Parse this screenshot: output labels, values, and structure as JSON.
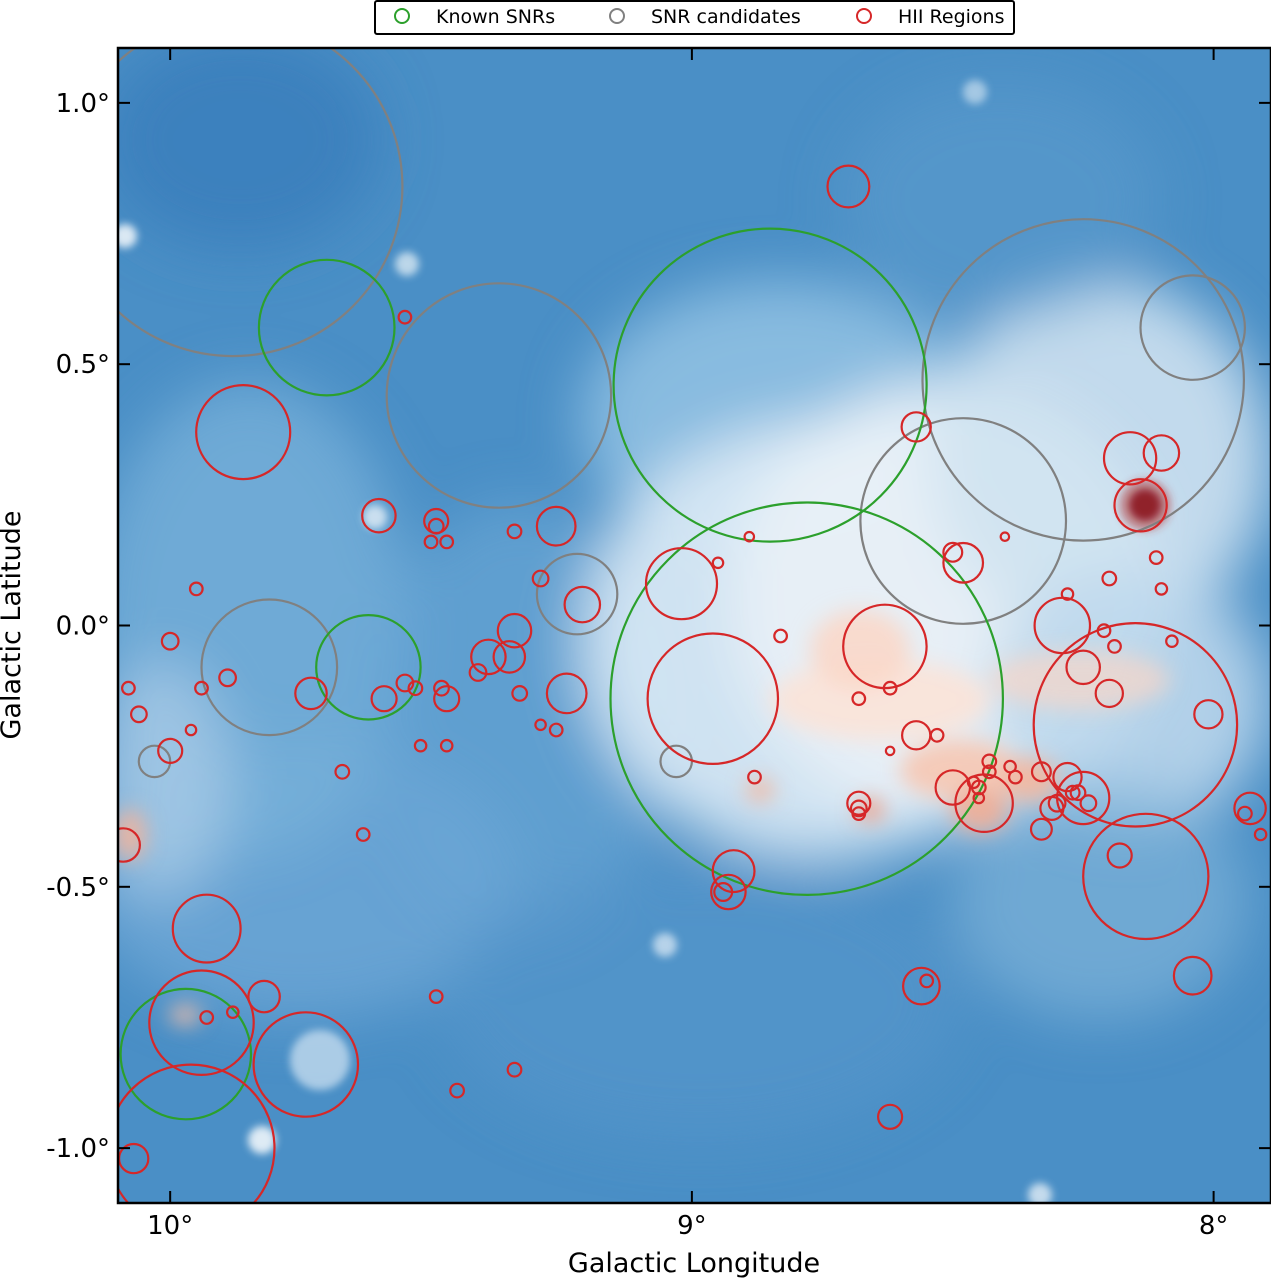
{
  "chart_data": {
    "type": "scatter",
    "title": "",
    "xlabel": "Galactic Longitude",
    "ylabel": "Galactic Latitude",
    "xlim": [
      10.1,
      7.89
    ],
    "ylim": [
      -1.105,
      1.105
    ],
    "x_reversed": true,
    "x_ticks": [
      {
        "value": 10.0,
        "label": "10°"
      },
      {
        "value": 9.0,
        "label": "9°"
      },
      {
        "value": 8.0,
        "label": "8°"
      }
    ],
    "y_ticks": [
      {
        "value": 1.0,
        "label": "1.0°"
      },
      {
        "value": 0.5,
        "label": "0.5°"
      },
      {
        "value": 0.0,
        "label": "0.0°"
      },
      {
        "value": -0.5,
        "label": "-0.5°"
      },
      {
        "value": -1.0,
        "label": "-1.0°"
      }
    ],
    "background": "blue-white-red diffuse emission map",
    "legend": {
      "position": "top-center",
      "entries": [
        {
          "label": "Known SNRs",
          "color": "#2ca02c"
        },
        {
          "label": "SNR candidates",
          "color": "#808080"
        },
        {
          "label": "HII Regions",
          "color": "#d62728"
        }
      ]
    },
    "series": [
      {
        "name": "Known SNRs",
        "color": "#2ca02c",
        "points": [
          {
            "l": 9.7,
            "b": 0.57,
            "r": 0.13
          },
          {
            "l": 9.62,
            "b": -0.08,
            "r": 0.1
          },
          {
            "l": 9.97,
            "b": -0.82,
            "r": 0.125
          },
          {
            "l": 8.85,
            "b": 0.46,
            "r": 0.3
          },
          {
            "l": 8.78,
            "b": -0.14,
            "r": 0.376
          }
        ]
      },
      {
        "name": "SNR candidates",
        "color": "#808080",
        "points": [
          {
            "l": 9.88,
            "b": 0.84,
            "r": 0.325
          },
          {
            "l": 9.37,
            "b": 0.44,
            "r": 0.215
          },
          {
            "l": 9.81,
            "b": -0.08,
            "r": 0.13
          },
          {
            "l": 9.22,
            "b": 0.06,
            "r": 0.077
          },
          {
            "l": 9.03,
            "b": -0.26,
            "r": 0.03
          },
          {
            "l": 8.48,
            "b": 0.2,
            "r": 0.197
          },
          {
            "l": 8.25,
            "b": 0.47,
            "r": 0.308
          },
          {
            "l": 8.04,
            "b": 0.57,
            "r": 0.1
          },
          {
            "l": 10.03,
            "b": -0.26,
            "r": 0.03
          }
        ]
      },
      {
        "name": "HII Regions",
        "color": "#d62728",
        "points": [
          {
            "l": 9.86,
            "b": 0.37,
            "r": 0.09
          },
          {
            "l": 9.55,
            "b": 0.59,
            "r": 0.012
          },
          {
            "l": 9.6,
            "b": 0.21,
            "r": 0.032
          },
          {
            "l": 9.49,
            "b": 0.2,
            "r": 0.023
          },
          {
            "l": 9.49,
            "b": 0.19,
            "r": 0.014
          },
          {
            "l": 9.47,
            "b": 0.16,
            "r": 0.012
          },
          {
            "l": 9.5,
            "b": 0.16,
            "r": 0.012
          },
          {
            "l": 9.34,
            "b": 0.18,
            "r": 0.013
          },
          {
            "l": 9.26,
            "b": 0.19,
            "r": 0.037
          },
          {
            "l": 9.29,
            "b": 0.09,
            "r": 0.015
          },
          {
            "l": 9.21,
            "b": 0.04,
            "r": 0.034
          },
          {
            "l": 9.34,
            "b": -0.01,
            "r": 0.032
          },
          {
            "l": 9.39,
            "b": -0.06,
            "r": 0.033
          },
          {
            "l": 9.41,
            "b": -0.09,
            "r": 0.016
          },
          {
            "l": 9.24,
            "b": -0.13,
            "r": 0.038
          },
          {
            "l": 9.29,
            "b": -0.19,
            "r": 0.01
          },
          {
            "l": 9.26,
            "b": -0.2,
            "r": 0.012
          },
          {
            "l": 9.55,
            "b": -0.11,
            "r": 0.016
          },
          {
            "l": 9.53,
            "b": -0.12,
            "r": 0.013
          },
          {
            "l": 9.52,
            "b": -0.23,
            "r": 0.011
          },
          {
            "l": 9.59,
            "b": -0.14,
            "r": 0.024
          },
          {
            "l": 9.73,
            "b": -0.13,
            "r": 0.03
          },
          {
            "l": 9.67,
            "b": -0.28,
            "r": 0.013
          },
          {
            "l": 9.89,
            "b": -0.1,
            "r": 0.016
          },
          {
            "l": 9.94,
            "b": -0.12,
            "r": 0.012
          },
          {
            "l": 9.95,
            "b": 0.07,
            "r": 0.012
          },
          {
            "l": 10.0,
            "b": -0.03,
            "r": 0.016
          },
          {
            "l": 10.08,
            "b": -0.12,
            "r": 0.012
          },
          {
            "l": 10.06,
            "b": -0.17,
            "r": 0.015
          },
          {
            "l": 9.96,
            "b": -0.2,
            "r": 0.01
          },
          {
            "l": 10.0,
            "b": -0.24,
            "r": 0.023
          },
          {
            "l": 9.63,
            "b": -0.4,
            "r": 0.012
          },
          {
            "l": 9.48,
            "b": -0.12,
            "r": 0.014
          },
          {
            "l": 9.47,
            "b": -0.14,
            "r": 0.024
          },
          {
            "l": 9.47,
            "b": -0.23,
            "r": 0.011
          },
          {
            "l": 10.09,
            "b": -0.42,
            "r": 0.032
          },
          {
            "l": 9.35,
            "b": -0.06,
            "r": 0.03
          },
          {
            "l": 9.33,
            "b": -0.13,
            "r": 0.014
          },
          {
            "l": 9.02,
            "b": 0.08,
            "r": 0.068
          },
          {
            "l": 8.96,
            "b": -0.14,
            "r": 0.125
          },
          {
            "l": 8.95,
            "b": 0.12,
            "r": 0.01
          },
          {
            "l": 8.89,
            "b": 0.17,
            "r": 0.009
          },
          {
            "l": 8.88,
            "b": -0.29,
            "r": 0.012
          },
          {
            "l": 8.83,
            "b": -0.02,
            "r": 0.012
          },
          {
            "l": 8.7,
            "b": 0.84,
            "r": 0.04
          },
          {
            "l": 8.63,
            "b": -0.04,
            "r": 0.08
          },
          {
            "l": 8.62,
            "b": -0.12,
            "r": 0.012
          },
          {
            "l": 8.68,
            "b": -0.14,
            "r": 0.012
          },
          {
            "l": 8.68,
            "b": -0.34,
            "r": 0.022
          },
          {
            "l": 8.68,
            "b": -0.35,
            "r": 0.015
          },
          {
            "l": 8.68,
            "b": -0.36,
            "r": 0.012
          },
          {
            "l": 8.62,
            "b": -0.24,
            "r": 0.008
          },
          {
            "l": 8.57,
            "b": -0.21,
            "r": 0.027
          },
          {
            "l": 8.53,
            "b": -0.21,
            "r": 0.012
          },
          {
            "l": 8.57,
            "b": 0.38,
            "r": 0.028
          },
          {
            "l": 8.56,
            "b": -0.69,
            "r": 0.035
          },
          {
            "l": 8.55,
            "b": -0.68,
            "r": 0.012
          },
          {
            "l": 8.62,
            "b": -0.94,
            "r": 0.023
          },
          {
            "l": 8.5,
            "b": -0.31,
            "r": 0.033
          },
          {
            "l": 8.46,
            "b": -0.3,
            "r": 0.011
          },
          {
            "l": 8.45,
            "b": -0.31,
            "r": 0.013
          },
          {
            "l": 8.43,
            "b": -0.26,
            "r": 0.013
          },
          {
            "l": 8.43,
            "b": -0.28,
            "r": 0.012
          },
          {
            "l": 8.44,
            "b": -0.34,
            "r": 0.055
          },
          {
            "l": 8.45,
            "b": -0.33,
            "r": 0.01
          },
          {
            "l": 8.39,
            "b": -0.27,
            "r": 0.011
          },
          {
            "l": 8.38,
            "b": -0.29,
            "r": 0.012
          },
          {
            "l": 8.33,
            "b": -0.28,
            "r": 0.018
          },
          {
            "l": 8.33,
            "b": -0.39,
            "r": 0.02
          },
          {
            "l": 8.31,
            "b": -0.35,
            "r": 0.022
          },
          {
            "l": 8.3,
            "b": -0.34,
            "r": 0.016
          },
          {
            "l": 8.28,
            "b": -0.29,
            "r": 0.027
          },
          {
            "l": 8.27,
            "b": -0.32,
            "r": 0.013
          },
          {
            "l": 8.26,
            "b": -0.32,
            "r": 0.014
          },
          {
            "l": 8.29,
            "b": 0.0,
            "r": 0.053
          },
          {
            "l": 8.28,
            "b": 0.06,
            "r": 0.011
          },
          {
            "l": 8.25,
            "b": -0.33,
            "r": 0.05
          },
          {
            "l": 8.25,
            "b": -0.08,
            "r": 0.032
          },
          {
            "l": 8.2,
            "b": -0.13,
            "r": 0.026
          },
          {
            "l": 8.18,
            "b": -0.44,
            "r": 0.023
          },
          {
            "l": 8.15,
            "b": -0.19,
            "r": 0.195
          },
          {
            "l": 8.13,
            "b": -0.48,
            "r": 0.12
          },
          {
            "l": 8.2,
            "b": 0.09,
            "r": 0.013
          },
          {
            "l": 8.21,
            "b": -0.01,
            "r": 0.012
          },
          {
            "l": 8.19,
            "b": -0.04,
            "r": 0.012
          },
          {
            "l": 8.24,
            "b": -0.34,
            "r": 0.015
          },
          {
            "l": 8.48,
            "b": 0.12,
            "r": 0.038
          },
          {
            "l": 8.5,
            "b": 0.14,
            "r": 0.018
          },
          {
            "l": 8.4,
            "b": 0.17,
            "r": 0.008
          },
          {
            "l": 8.16,
            "b": 0.32,
            "r": 0.05
          },
          {
            "l": 8.1,
            "b": 0.33,
            "r": 0.034
          },
          {
            "l": 8.14,
            "b": 0.23,
            "r": 0.05
          },
          {
            "l": 8.11,
            "b": 0.13,
            "r": 0.012
          },
          {
            "l": 8.1,
            "b": 0.07,
            "r": 0.011
          },
          {
            "l": 8.08,
            "b": -0.03,
            "r": 0.011
          },
          {
            "l": 8.01,
            "b": -0.17,
            "r": 0.027
          },
          {
            "l": 7.93,
            "b": -0.35,
            "r": 0.03
          },
          {
            "l": 7.94,
            "b": -0.36,
            "r": 0.013
          },
          {
            "l": 7.91,
            "b": -0.4,
            "r": 0.011
          },
          {
            "l": 8.04,
            "b": -0.67,
            "r": 0.036
          },
          {
            "l": 8.92,
            "b": -0.47,
            "r": 0.04
          },
          {
            "l": 8.93,
            "b": -0.51,
            "r": 0.033
          },
          {
            "l": 8.94,
            "b": -0.51,
            "r": 0.017
          },
          {
            "l": 9.93,
            "b": -0.58,
            "r": 0.065
          },
          {
            "l": 9.94,
            "b": -0.76,
            "r": 0.1
          },
          {
            "l": 9.82,
            "b": -0.71,
            "r": 0.03
          },
          {
            "l": 9.93,
            "b": -0.75,
            "r": 0.012
          },
          {
            "l": 9.88,
            "b": -0.74,
            "r": 0.011
          },
          {
            "l": 9.74,
            "b": -0.84,
            "r": 0.1
          },
          {
            "l": 9.96,
            "b": -1.0,
            "r": 0.16
          },
          {
            "l": 10.07,
            "b": -1.02,
            "r": 0.028
          },
          {
            "l": 9.49,
            "b": -0.71,
            "r": 0.012
          },
          {
            "l": 9.45,
            "b": -0.89,
            "r": 0.013
          },
          {
            "l": 9.34,
            "b": -0.85,
            "r": 0.013
          }
        ]
      }
    ]
  }
}
